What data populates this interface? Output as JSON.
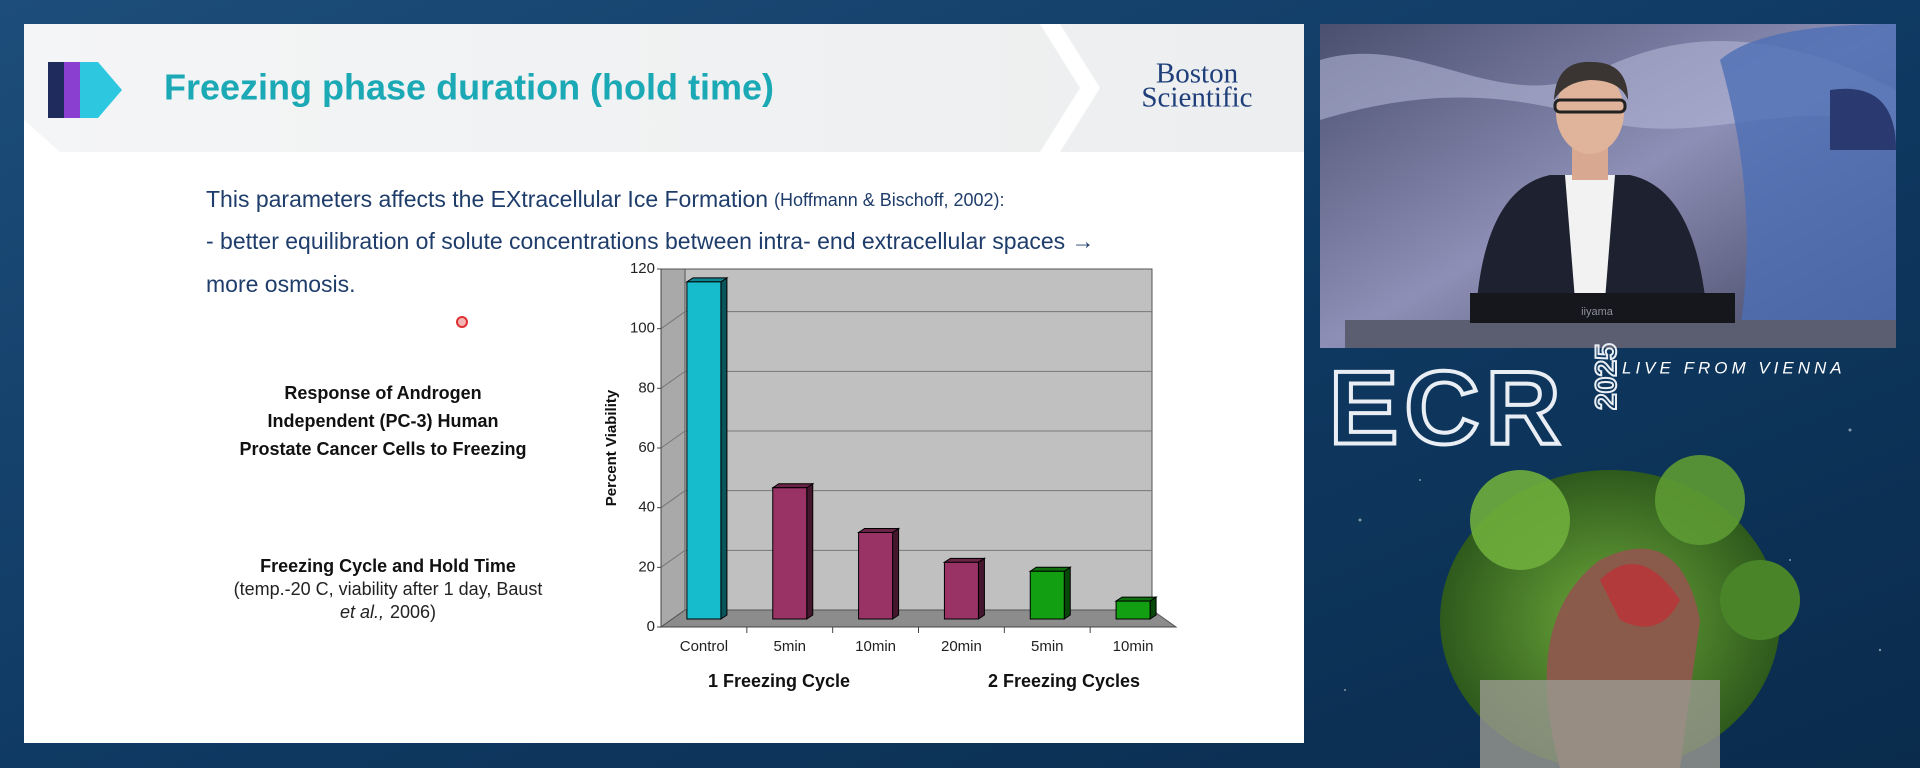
{
  "slide": {
    "title": "Freezing phase duration (hold time)",
    "logo": [
      "Boston",
      "Scientific"
    ],
    "body": {
      "line1": "This parameters affects the  EXtracellular Ice Formation",
      "line1_citation": "(Hoffmann & Bischoff, 2002):",
      "line2": "- better equilibration of solute concentrations between intra- end extracellular spaces →",
      "line3": "more osmosis."
    },
    "caption": {
      "title": [
        "Response of Androgen",
        "Independent (PC-3) Human",
        "Prostate Cancer Cells to Freezing"
      ],
      "subtitle": "Freezing Cycle and Hold Time",
      "note": "(temp.-20 C, viability after 1 day, Baust",
      "note_italic": "et al.,",
      "note_end": "2006)"
    },
    "chart": {
      "type": "bar",
      "y_label": "Percent Viability",
      "categories": [
        "Control",
        "5min",
        "10min",
        "20min",
        "5min",
        "10min"
      ],
      "values": [
        113,
        44,
        29,
        19,
        16,
        6
      ],
      "colors": [
        "#17bccc",
        "#993366",
        "#993366",
        "#993366",
        "#12a012",
        "#12a012"
      ],
      "groups": [
        "1 Freezing Cycle",
        "2 Freezing Cycles"
      ],
      "ylim": [
        0,
        120
      ],
      "yticks": [
        0,
        20,
        40,
        60,
        80,
        100,
        120
      ],
      "grid": true
    }
  },
  "video": {
    "monitor_brand": "iiyama",
    "event": {
      "name": "ECR",
      "year": "2025",
      "tagline": "LIVE FROM VIENNA"
    }
  }
}
